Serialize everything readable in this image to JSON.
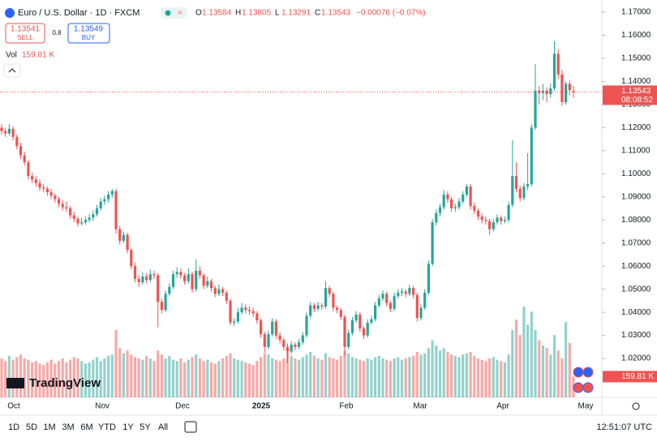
{
  "chart_data": {
    "type": "candlestick",
    "title": "Euro / U.S. Dollar · 1D · FXCM",
    "ohlc_labels": [
      "O",
      "H",
      "L",
      "C"
    ],
    "change": "−0.00076 (−0.07%)",
    "sell_price": "1.13541",
    "sell_label": "SELL",
    "spread": "0.8",
    "buy_price": "1.13549",
    "buy_label": "BUY",
    "volume_title": "Vol",
    "volume_label": "159.81 K",
    "countdown": "08:08:52",
    "logo": "TradingView",
    "up_color": "#26a69a",
    "down_color": "#ef5350",
    "ylim": [
      1.00316,
      1.17527
    ],
    "vlim": [
      0,
      1000
    ],
    "yticks": [
      {
        "value": 1.17,
        "label": "1.17000"
      },
      {
        "value": 1.16,
        "label": "1.16000"
      },
      {
        "value": 1.15,
        "label": "1.15000"
      },
      {
        "value": 1.14,
        "label": "1.14000"
      },
      {
        "value": 1.13,
        "label": "1.13000"
      },
      {
        "value": 1.12,
        "label": "1.12000"
      },
      {
        "value": 1.11,
        "label": "1.11000"
      },
      {
        "value": 1.1,
        "label": "1.10000"
      },
      {
        "value": 1.09,
        "label": "1.09000"
      },
      {
        "value": 1.08,
        "label": "1.08000"
      },
      {
        "value": 1.07,
        "label": "1.07000"
      },
      {
        "value": 1.06,
        "label": "1.06000"
      },
      {
        "value": 1.05,
        "label": "1.05000"
      },
      {
        "value": 1.04,
        "label": "1.04000"
      },
      {
        "value": 1.03,
        "label": "1.03000"
      },
      {
        "value": 1.02,
        "label": "1.02000"
      }
    ],
    "grid": false,
    "xtick_labels": [
      "Oct",
      "Nov",
      "Dec",
      "2025",
      "Feb",
      "Mar",
      "Apr",
      "May"
    ],
    "candles": [
      [
        1.12,
        1.1215,
        1.117,
        1.1185
      ],
      [
        1.1185,
        1.12,
        1.116,
        1.1175
      ],
      [
        1.1175,
        1.1215,
        1.1165,
        1.1195
      ],
      [
        1.1195,
        1.1205,
        1.1145,
        1.116
      ],
      [
        1.116,
        1.117,
        1.1105,
        1.112
      ],
      [
        1.112,
        1.1135,
        1.1065,
        1.108
      ],
      [
        1.108,
        1.1095,
        1.1035,
        1.105
      ],
      [
        1.105,
        1.106,
        1.0975,
        1.099
      ],
      [
        1.099,
        1.1005,
        1.096,
        1.0975
      ],
      [
        1.0975,
        1.099,
        1.0945,
        1.096
      ],
      [
        1.096,
        1.0975,
        1.0925,
        1.094
      ],
      [
        1.094,
        1.0955,
        1.092,
        1.0935
      ],
      [
        1.0935,
        1.0945,
        1.0905,
        1.092
      ],
      [
        1.092,
        1.0935,
        1.089,
        1.0905
      ],
      [
        1.0905,
        1.0915,
        1.0875,
        1.089
      ],
      [
        1.089,
        1.09,
        1.0855,
        1.087
      ],
      [
        1.087,
        1.0885,
        1.084,
        1.0855
      ],
      [
        1.0855,
        1.088,
        1.0835,
        1.085
      ],
      [
        1.085,
        1.086,
        1.0805,
        1.082
      ],
      [
        1.082,
        1.0835,
        1.079,
        1.0805
      ],
      [
        1.0805,
        1.0815,
        1.077,
        1.0785
      ],
      [
        1.0785,
        1.081,
        1.0775,
        1.079
      ],
      [
        1.079,
        1.0815,
        1.078,
        1.08
      ],
      [
        1.08,
        1.0825,
        1.079,
        1.081
      ],
      [
        1.081,
        1.084,
        1.0795,
        1.0825
      ],
      [
        1.0825,
        1.0865,
        1.0815,
        1.085
      ],
      [
        1.085,
        1.0895,
        1.084,
        1.088
      ],
      [
        1.088,
        1.0905,
        1.0865,
        1.089
      ],
      [
        1.089,
        1.0925,
        1.0875,
        1.091
      ],
      [
        1.091,
        1.0935,
        1.0895,
        1.0925
      ],
      [
        1.0925,
        1.0935,
        1.074,
        1.076
      ],
      [
        1.076,
        1.0775,
        1.0695,
        1.071
      ],
      [
        1.071,
        1.075,
        1.07,
        1.0735
      ],
      [
        1.0735,
        1.0745,
        1.0655,
        1.067
      ],
      [
        1.067,
        1.068,
        1.0585,
        1.06
      ],
      [
        1.06,
        1.0615,
        1.053,
        1.0545
      ],
      [
        1.0545,
        1.056,
        1.051,
        1.053
      ],
      [
        1.053,
        1.0575,
        1.052,
        1.0555
      ],
      [
        1.0555,
        1.057,
        1.0525,
        1.054
      ],
      [
        1.054,
        1.0585,
        1.053,
        1.0565
      ],
      [
        1.0565,
        1.058,
        1.0545,
        1.056
      ],
      [
        1.056,
        1.057,
        1.0335,
        1.0445
      ],
      [
        1.0445,
        1.046,
        1.0395,
        1.041
      ],
      [
        1.041,
        1.0495,
        1.04,
        1.048
      ],
      [
        1.048,
        1.0525,
        1.047,
        1.051
      ],
      [
        1.051,
        1.058,
        1.05,
        1.0565
      ],
      [
        1.0565,
        1.0595,
        1.055,
        1.0575
      ],
      [
        1.0575,
        1.059,
        1.0545,
        1.056
      ],
      [
        1.056,
        1.057,
        1.052,
        1.0535
      ],
      [
        1.0535,
        1.059,
        1.0525,
        1.0565
      ],
      [
        1.0565,
        1.0575,
        1.0485,
        1.05
      ],
      [
        1.05,
        1.063,
        1.049,
        1.058
      ],
      [
        1.058,
        1.06,
        1.0545,
        1.056
      ],
      [
        1.056,
        1.057,
        1.05,
        1.0515
      ],
      [
        1.0515,
        1.0555,
        1.0505,
        1.0535
      ],
      [
        1.0535,
        1.0545,
        1.049,
        1.0505
      ],
      [
        1.0505,
        1.0515,
        1.0465,
        1.048
      ],
      [
        1.048,
        1.052,
        1.047,
        1.05
      ],
      [
        1.05,
        1.051,
        1.047,
        1.0485
      ],
      [
        1.0485,
        1.0495,
        1.0435,
        1.045
      ],
      [
        1.045,
        1.046,
        1.0345,
        1.0355
      ],
      [
        1.0355,
        1.0375,
        1.034,
        1.036
      ],
      [
        1.036,
        1.042,
        1.035,
        1.04
      ],
      [
        1.04,
        1.044,
        1.039,
        1.042
      ],
      [
        1.042,
        1.0435,
        1.0395,
        1.041
      ],
      [
        1.041,
        1.0425,
        1.039,
        1.0405
      ],
      [
        1.0405,
        1.042,
        1.038,
        1.0395
      ],
      [
        1.0395,
        1.0405,
        1.035,
        1.0365
      ],
      [
        1.0365,
        1.0375,
        1.029,
        1.0305
      ],
      [
        1.0305,
        1.0315,
        1.0225,
        1.025
      ],
      [
        1.025,
        1.032,
        1.024,
        1.0305
      ],
      [
        1.0305,
        1.0375,
        1.0295,
        1.036
      ],
      [
        1.036,
        1.037,
        1.0285,
        1.03
      ],
      [
        1.03,
        1.0315,
        1.0265,
        1.028
      ],
      [
        1.028,
        1.029,
        1.0235,
        1.025
      ],
      [
        1.025,
        1.0265,
        1.018,
        1.023
      ],
      [
        1.023,
        1.0275,
        1.022,
        1.026
      ],
      [
        1.026,
        1.027,
        1.0235,
        1.025
      ],
      [
        1.025,
        1.0285,
        1.024,
        1.027
      ],
      [
        1.027,
        1.0315,
        1.026,
        1.03
      ],
      [
        1.03,
        1.04,
        1.029,
        1.0385
      ],
      [
        1.0385,
        1.0445,
        1.0375,
        1.043
      ],
      [
        1.043,
        1.044,
        1.04,
        1.0415
      ],
      [
        1.0415,
        1.0445,
        1.0405,
        1.043
      ],
      [
        1.043,
        1.044,
        1.041,
        1.0425
      ],
      [
        1.0425,
        1.0535,
        1.0415,
        1.0505
      ],
      [
        1.0505,
        1.0515,
        1.0465,
        1.048
      ],
      [
        1.048,
        1.049,
        1.0405,
        1.042
      ],
      [
        1.042,
        1.043,
        1.0395,
        1.041
      ],
      [
        1.041,
        1.042,
        1.0365,
        1.038
      ],
      [
        1.038,
        1.039,
        1.021,
        1.025
      ],
      [
        1.025,
        1.0325,
        1.024,
        1.031
      ],
      [
        1.031,
        1.038,
        1.03,
        1.0365
      ],
      [
        1.0365,
        1.0405,
        1.0355,
        1.039
      ],
      [
        1.039,
        1.04,
        1.0315,
        1.033
      ],
      [
        1.033,
        1.034,
        1.0285,
        1.03
      ],
      [
        1.03,
        1.037,
        1.029,
        1.0355
      ],
      [
        1.0355,
        1.0385,
        1.0345,
        1.037
      ],
      [
        1.037,
        1.0445,
        1.036,
        1.043
      ],
      [
        1.043,
        1.0475,
        1.042,
        1.046
      ],
      [
        1.046,
        1.0495,
        1.045,
        1.048
      ],
      [
        1.048,
        1.049,
        1.0425,
        1.044
      ],
      [
        1.044,
        1.045,
        1.04,
        1.0415
      ],
      [
        1.0415,
        1.0485,
        1.0405,
        1.047
      ],
      [
        1.047,
        1.05,
        1.046,
        1.0485
      ],
      [
        1.0485,
        1.0505,
        1.047,
        1.049
      ],
      [
        1.049,
        1.05,
        1.0465,
        1.048
      ],
      [
        1.048,
        1.052,
        1.047,
        1.0505
      ],
      [
        1.0505,
        1.0515,
        1.046,
        1.0475
      ],
      [
        1.0475,
        1.0485,
        1.036,
        1.0375
      ],
      [
        1.0375,
        1.0435,
        1.0365,
        1.042
      ],
      [
        1.042,
        1.05,
        1.041,
        1.0485
      ],
      [
        1.0485,
        1.0625,
        1.0475,
        1.061
      ],
      [
        1.061,
        1.0805,
        1.06,
        1.079
      ],
      [
        1.079,
        1.0845,
        1.0775,
        1.083
      ],
      [
        1.083,
        1.087,
        1.0815,
        1.0855
      ],
      [
        1.0855,
        1.093,
        1.0845,
        1.091
      ],
      [
        1.091,
        1.0925,
        1.0875,
        1.089
      ],
      [
        1.089,
        1.09,
        1.0835,
        1.085
      ],
      [
        1.085,
        1.087,
        1.0835,
        1.0855
      ],
      [
        1.0855,
        1.0895,
        1.0845,
        1.088
      ],
      [
        1.088,
        1.0925,
        1.087,
        1.091
      ],
      [
        1.091,
        1.0955,
        1.09,
        1.0945
      ],
      [
        1.0945,
        1.0955,
        1.0845,
        1.086
      ],
      [
        1.086,
        1.0875,
        1.0825,
        1.084
      ],
      [
        1.084,
        1.085,
        1.08,
        1.0815
      ],
      [
        1.0815,
        1.083,
        1.0785,
        1.08
      ],
      [
        1.08,
        1.0815,
        1.078,
        1.0795
      ],
      [
        1.0795,
        1.0805,
        1.0735,
        1.076
      ],
      [
        1.076,
        1.0805,
        1.075,
        1.079
      ],
      [
        1.079,
        1.0825,
        1.078,
        1.081
      ],
      [
        1.081,
        1.082,
        1.078,
        1.0795
      ],
      [
        1.0795,
        1.0815,
        1.0785,
        1.08
      ],
      [
        1.08,
        1.088,
        1.079,
        1.0865
      ],
      [
        1.0865,
        1.1145,
        1.0855,
        1.099
      ],
      [
        1.099,
        1.105,
        1.092,
        1.0935
      ],
      [
        1.0935,
        1.095,
        1.088,
        1.0895
      ],
      [
        1.0895,
        1.096,
        1.0885,
        1.0945
      ],
      [
        1.0945,
        1.109,
        1.093,
        1.0955
      ],
      [
        1.0955,
        1.1215,
        1.0945,
        1.12
      ],
      [
        1.12,
        1.1475,
        1.119,
        1.136
      ],
      [
        1.136,
        1.138,
        1.13,
        1.135
      ],
      [
        1.135,
        1.139,
        1.132,
        1.136
      ],
      [
        1.136,
        1.1375,
        1.131,
        1.1345
      ],
      [
        1.1345,
        1.139,
        1.133,
        1.137
      ],
      [
        1.137,
        1.1575,
        1.136,
        1.152
      ],
      [
        1.152,
        1.154,
        1.141,
        1.143
      ],
      [
        1.143,
        1.145,
        1.1295,
        1.131
      ],
      [
        1.131,
        1.14,
        1.13,
        1.139
      ],
      [
        1.139,
        1.1405,
        1.134,
        1.1362
      ],
      [
        1.13584,
        1.13805,
        1.13291,
        1.13543
      ]
    ],
    "volume": [
      300,
      280,
      320,
      290,
      310,
      330,
      300,
      290,
      270,
      280,
      260,
      250,
      270,
      290,
      260,
      280,
      300,
      270,
      290,
      310,
      300,
      280,
      260,
      270,
      290,
      310,
      280,
      300,
      320,
      330,
      520,
      380,
      340,
      360,
      330,
      310,
      300,
      290,
      320,
      300,
      280,
      360,
      330,
      300,
      320,
      290,
      280,
      300,
      270,
      290,
      310,
      330,
      300,
      280,
      290,
      270,
      260,
      280,
      300,
      320,
      340,
      300,
      290,
      280,
      270,
      260,
      250,
      280,
      310,
      340,
      330,
      300,
      290,
      280,
      300,
      350,
      320,
      300,
      290,
      310,
      330,
      350,
      320,
      300,
      290,
      340,
      310,
      300,
      290,
      320,
      360,
      340,
      310,
      300,
      290,
      280,
      300,
      290,
      310,
      320,
      300,
      290,
      280,
      300,
      310,
      290,
      300,
      310,
      320,
      350,
      330,
      340,
      380,
      440,
      400,
      360,
      380,
      350,
      330,
      320,
      310,
      330,
      340,
      350,
      320,
      300,
      290,
      280,
      300,
      310,
      290,
      280,
      270,
      330,
      520,
      600,
      480,
      700,
      560,
      660,
      520,
      440,
      400,
      380,
      330,
      480,
      360,
      300,
      580,
      420,
      159.81
    ],
    "ranges": [
      "1D",
      "5D",
      "1M",
      "3M",
      "6M",
      "YTD",
      "1Y",
      "5Y",
      "All"
    ],
    "clock": "12:51:07 UTC"
  }
}
